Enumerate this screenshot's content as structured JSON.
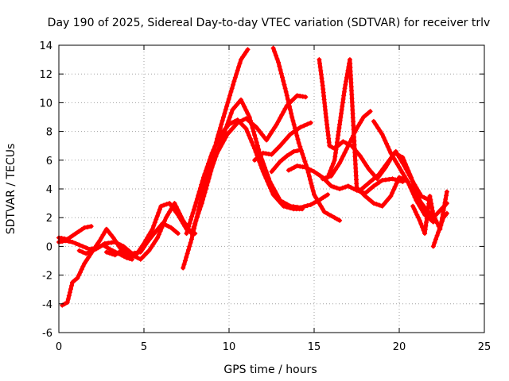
{
  "chart_data": {
    "type": "scatter",
    "title": "Day 190 of 2025, Sidereal Day-to-day VTEC variation (SDTVAR) for receiver trlv",
    "xlabel": "GPS time / hours",
    "ylabel": "SDTVAR / TECUs",
    "xlim": [
      0,
      25
    ],
    "ylim": [
      -6,
      14
    ],
    "xticks": [
      "0",
      "5",
      "10",
      "15",
      "20",
      "25"
    ],
    "yticks": [
      "-6",
      "-4",
      "-2",
      "0",
      "2",
      "4",
      "6",
      "8",
      "10",
      "12",
      "14"
    ],
    "grid": true,
    "marker": "+",
    "color": "#ff0000",
    "series": [
      {
        "x": [
          0.0,
          0.5,
          1.0,
          1.5,
          1.9
        ],
        "y": [
          0.6,
          0.5,
          0.9,
          1.3,
          1.4
        ]
      },
      {
        "x": [
          0.2,
          0.5,
          0.8,
          1.1,
          1.5,
          2.0,
          2.6,
          3.0,
          3.5,
          4.0,
          4.3
        ],
        "y": [
          -4.1,
          -3.9,
          -2.5,
          -2.2,
          -1.2,
          -0.3,
          0.1,
          -0.2,
          -0.5,
          -0.8,
          -0.9
        ]
      },
      {
        "x": [
          0.0,
          0.4,
          0.8,
          1.2,
          1.8,
          2.3,
          2.7,
          3.3,
          3.8,
          4.3,
          4.8,
          5.2,
          5.6,
          6.1,
          6.6,
          7.0
        ],
        "y": [
          0.3,
          0.4,
          0.3,
          0.1,
          -0.2,
          -0.1,
          0.2,
          0.3,
          0.0,
          -0.5,
          -0.4,
          0.3,
          0.9,
          1.6,
          1.3,
          0.9
        ]
      },
      {
        "x": [
          1.2,
          1.6,
          2.0,
          2.4,
          2.8,
          3.2,
          3.7,
          4.2,
          4.6,
          5.0,
          5.5,
          6.0,
          6.5,
          7.0,
          7.5,
          8.0
        ],
        "y": [
          -0.3,
          -0.5,
          -0.3,
          0.4,
          1.2,
          0.6,
          -0.3,
          -0.8,
          -0.5,
          0.2,
          1.2,
          2.8,
          3.0,
          2.2,
          1.2,
          0.9
        ]
      },
      {
        "x": [
          2.8,
          3.3,
          3.8,
          4.3,
          4.8,
          5.3,
          5.8,
          6.3,
          6.8,
          7.3,
          7.8,
          8.4,
          9.0,
          9.6,
          10.2,
          10.7,
          11.2,
          11.8,
          12.4,
          13.0,
          13.6,
          14.2,
          14.8,
          15.4,
          15.8
        ],
        "y": [
          -0.4,
          -0.6,
          -0.2,
          -0.6,
          -0.9,
          -0.3,
          0.6,
          2.0,
          3.0,
          1.8,
          0.9,
          3.0,
          5.5,
          7.5,
          9.5,
          10.2,
          9.0,
          6.5,
          4.5,
          3.2,
          2.8,
          2.7,
          2.9,
          3.3,
          3.6
        ]
      },
      {
        "x": [
          7.3,
          7.8,
          8.3,
          8.8,
          9.3,
          9.8,
          10.3,
          10.7,
          11.1
        ],
        "y": [
          -1.5,
          0.5,
          3.0,
          5.2,
          7.5,
          9.5,
          11.5,
          13.0,
          13.7
        ]
      },
      {
        "x": [
          7.5,
          8.0,
          8.5,
          9.0,
          9.5,
          10.0,
          10.5,
          11.0,
          11.5,
          12.0,
          12.6,
          13.2,
          13.8,
          14.3
        ],
        "y": [
          0.9,
          2.8,
          4.8,
          6.5,
          7.8,
          8.5,
          8.8,
          8.2,
          6.8,
          5.2,
          3.6,
          2.8,
          2.6,
          2.6
        ]
      },
      {
        "x": [
          8.2,
          8.7,
          9.3,
          9.9,
          10.5,
          11.0,
          11.6,
          12.2,
          12.8,
          13.4,
          14.0,
          14.5
        ],
        "y": [
          3.5,
          5.0,
          6.5,
          7.8,
          8.6,
          8.9,
          8.3,
          7.4,
          8.5,
          9.8,
          10.5,
          10.4
        ]
      },
      {
        "x": [
          11.5,
          12.0,
          12.5,
          13.0,
          13.6,
          14.2,
          14.8
        ],
        "y": [
          6.0,
          6.5,
          6.4,
          7.0,
          7.8,
          8.3,
          8.6
        ]
      },
      {
        "x": [
          12.5,
          13.0,
          13.4,
          13.8,
          14.2
        ],
        "y": [
          5.2,
          5.9,
          6.3,
          6.6,
          6.7
        ]
      },
      {
        "x": [
          12.6,
          12.9,
          13.3,
          13.7,
          14.1,
          14.6,
          15.0,
          15.6,
          16.2,
          16.5
        ],
        "y": [
          13.8,
          12.8,
          11.0,
          9.0,
          7.2,
          5.4,
          3.6,
          2.4,
          2.0,
          1.8
        ]
      },
      {
        "x": [
          13.5,
          14.0,
          14.5,
          15.0,
          15.5,
          16.0,
          16.5,
          17.0,
          17.5,
          18.0,
          18.5,
          19.0,
          19.6,
          20.2
        ],
        "y": [
          5.3,
          5.6,
          5.5,
          5.2,
          4.8,
          4.2,
          4.0,
          4.2,
          3.9,
          3.7,
          4.2,
          4.6,
          4.7,
          4.5
        ]
      },
      {
        "x": [
          15.3,
          15.5,
          15.7,
          15.9,
          16.2,
          16.7,
          17.2,
          17.7,
          18.2,
          18.7,
          19.2,
          19.7,
          20.2,
          20.7,
          21.2,
          21.6
        ],
        "y": [
          13.0,
          11.2,
          9.0,
          7.0,
          6.8,
          7.3,
          7.0,
          6.3,
          5.4,
          4.7,
          5.5,
          6.5,
          6.2,
          4.8,
          3.2,
          2.1
        ]
      },
      {
        "x": [
          15.8,
          16.2,
          16.5,
          16.8,
          17.1,
          17.5,
          18.0,
          18.5,
          19.0,
          19.5,
          20.0,
          20.5,
          21.0,
          21.5,
          22.0,
          22.4,
          22.8
        ],
        "y": [
          4.8,
          6.0,
          8.5,
          11.0,
          13.0,
          4.1,
          3.5,
          3.0,
          2.8,
          3.5,
          4.8,
          4.5,
          3.5,
          2.7,
          2.0,
          2.5,
          3.0
        ]
      },
      {
        "x": [
          15.5,
          16.0,
          16.5,
          17.0,
          17.5,
          17.9,
          18.3
        ],
        "y": [
          4.7,
          4.9,
          5.8,
          7.0,
          8.2,
          9.0,
          9.4
        ]
      },
      {
        "x": [
          18.5,
          19.0,
          19.5,
          20.0,
          20.5,
          21.0,
          21.5,
          22.0
        ],
        "y": [
          8.7,
          7.8,
          6.5,
          5.5,
          4.5,
          3.2,
          2.2,
          1.7
        ]
      },
      {
        "x": [
          17.8,
          18.3,
          18.8,
          19.3,
          19.8,
          20.3,
          20.8,
          21.3,
          21.8
        ],
        "y": [
          4.0,
          4.5,
          5.0,
          5.8,
          6.6,
          5.6,
          4.5,
          3.5,
          3.2
        ]
      },
      {
        "x": [
          20.8,
          21.2,
          21.5,
          21.8,
          22.0,
          22.4,
          22.8
        ],
        "y": [
          2.8,
          1.8,
          0.9,
          3.5,
          2.2,
          1.2,
          3.8
        ]
      },
      {
        "x": [
          22.0,
          22.3,
          22.6,
          22.8
        ],
        "y": [
          0.0,
          1.0,
          2.0,
          2.3
        ]
      }
    ]
  }
}
